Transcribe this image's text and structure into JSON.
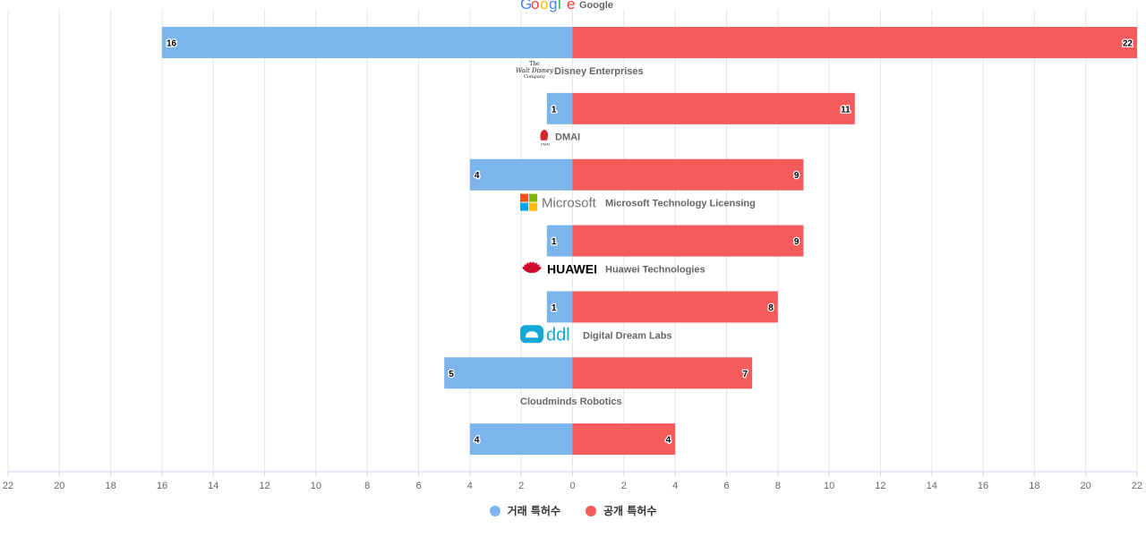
{
  "chart_data": {
    "type": "bar",
    "orientation": "horizontal-diverging",
    "categories": [
      "Google",
      "Disney Enterprises",
      "DMAI",
      "Microsoft Technology Licensing",
      "Huawei Technologies",
      "Digital Dream Labs",
      "Cloudminds Robotics"
    ],
    "series": [
      {
        "name": "거래 특허수",
        "color": "#7cb5ec",
        "direction": "left",
        "values": [
          16,
          1,
          4,
          1,
          1,
          5,
          4
        ]
      },
      {
        "name": "공개 특허수",
        "color": "#f45b5b",
        "direction": "right",
        "values": [
          22,
          11,
          9,
          9,
          8,
          7,
          4
        ]
      }
    ],
    "logos": [
      "Google",
      "The Walt Disney Company",
      "DMAI",
      "Microsoft",
      "HUAWEI",
      "ddl",
      ""
    ],
    "xlim": [
      -22,
      22
    ],
    "xticks": [
      22,
      20,
      18,
      16,
      14,
      12,
      10,
      8,
      6,
      4,
      2,
      0,
      2,
      4,
      6,
      8,
      10,
      12,
      14,
      16,
      18,
      20,
      22
    ],
    "grid": true,
    "legend_position": "bottom-center",
    "title": "",
    "xlabel": "",
    "ylabel": ""
  }
}
